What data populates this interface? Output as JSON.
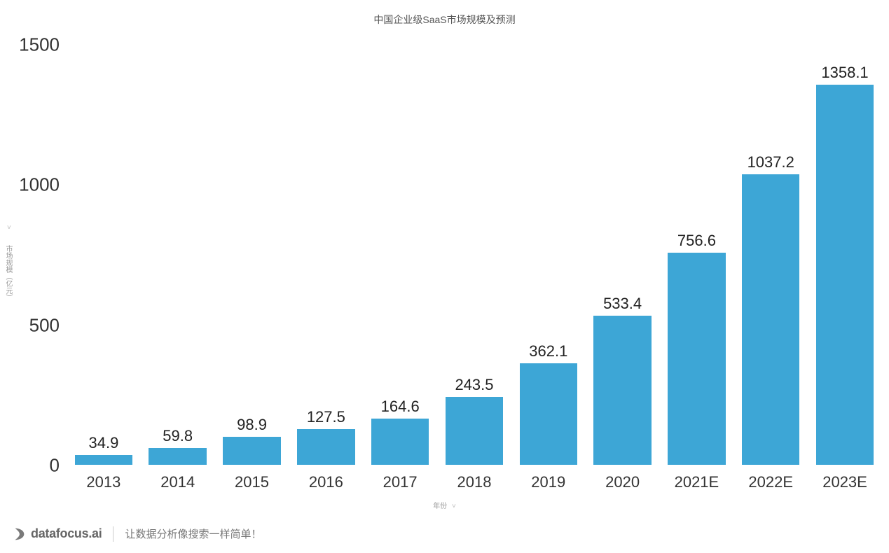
{
  "chart": {
    "type": "bar",
    "title": "中国企业级SaaS市场规模及预测",
    "title_fontsize": 14,
    "title_color": "#555555",
    "background_color": "#ffffff",
    "y_axis": {
      "label": "市场规模（亿元）",
      "label_fontsize": 10,
      "label_color": "#999999",
      "ticks": [
        0,
        500,
        1000,
        1500
      ],
      "tick_fontsize": 26,
      "tick_color": "#333333",
      "ymax_for_layout": 1550
    },
    "x_axis": {
      "label": "年份",
      "label_fontsize": 10,
      "label_color": "#999999"
    },
    "bars": {
      "color": "#3da6d6",
      "width_ratio": 0.78,
      "value_fontsize": 22,
      "value_color": "#222222",
      "label_fontsize": 22,
      "label_color": "#333333",
      "categories": [
        "2013",
        "2014",
        "2015",
        "2016",
        "2017",
        "2018",
        "2019",
        "2020",
        "2021E",
        "2022E",
        "2023E"
      ],
      "values": [
        34.9,
        59.8,
        98.9,
        127.5,
        164.6,
        243.5,
        362.1,
        533.4,
        756.6,
        1037.2,
        1358.1
      ]
    }
  },
  "footer": {
    "logo_text": "datafocus.ai",
    "logo_color": "#666666",
    "tagline": "让数据分析像搜索一样简单！",
    "tagline_color": "#777777"
  }
}
